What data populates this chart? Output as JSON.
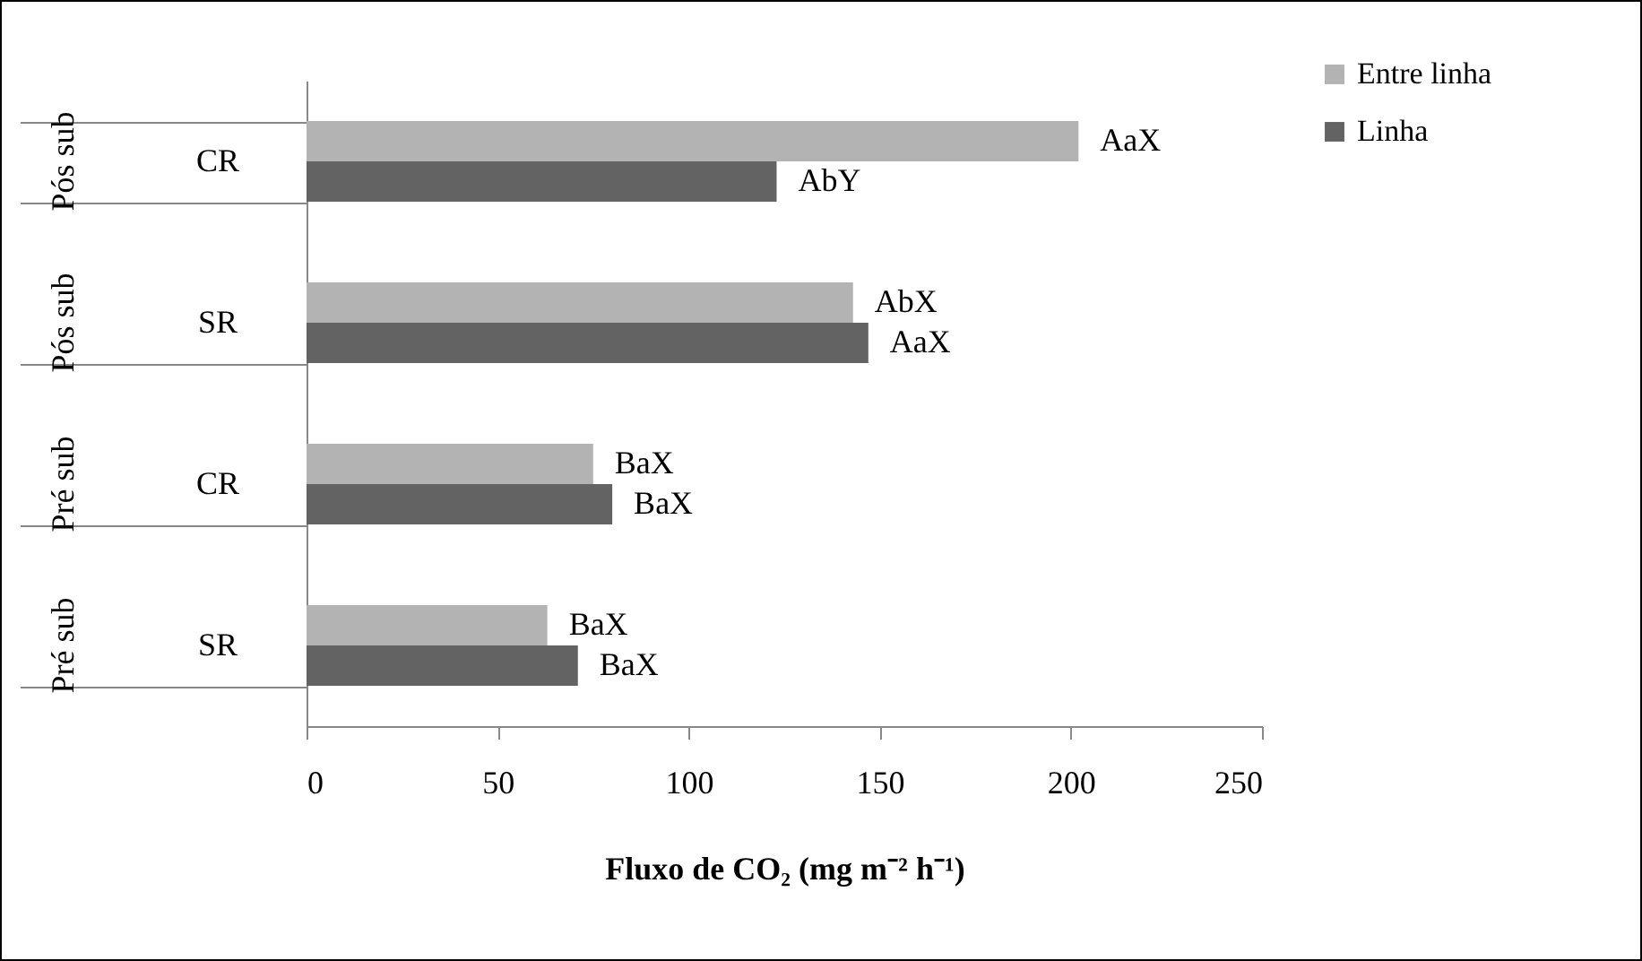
{
  "chart_data": {
    "type": "bar",
    "orientation": "horizontal",
    "xlabel": "Fluxo de CO₂ (mg m⁻² h⁻¹)",
    "categories": [
      "CR",
      "SR",
      "CR",
      "SR"
    ],
    "annotations": [
      "Pós sub",
      "Pós sub",
      "Pré sub",
      "Pré sub"
    ],
    "series": [
      {
        "name": "Entre linha",
        "color": "#b3b3b3",
        "values": [
          202,
          143,
          75,
          63
        ],
        "value_labels": [
          "AaX",
          "AbX",
          "BaX",
          "BaX"
        ]
      },
      {
        "name": "Linha",
        "color": "#636363",
        "values": [
          123,
          147,
          80,
          71
        ],
        "value_labels": [
          "AbY",
          "AaX",
          "BaX",
          "BaX"
        ]
      }
    ],
    "xlim": [
      0,
      250
    ],
    "xticks": [
      0,
      50,
      100,
      150,
      200,
      250
    ],
    "legend": "top right",
    "grid": false
  }
}
